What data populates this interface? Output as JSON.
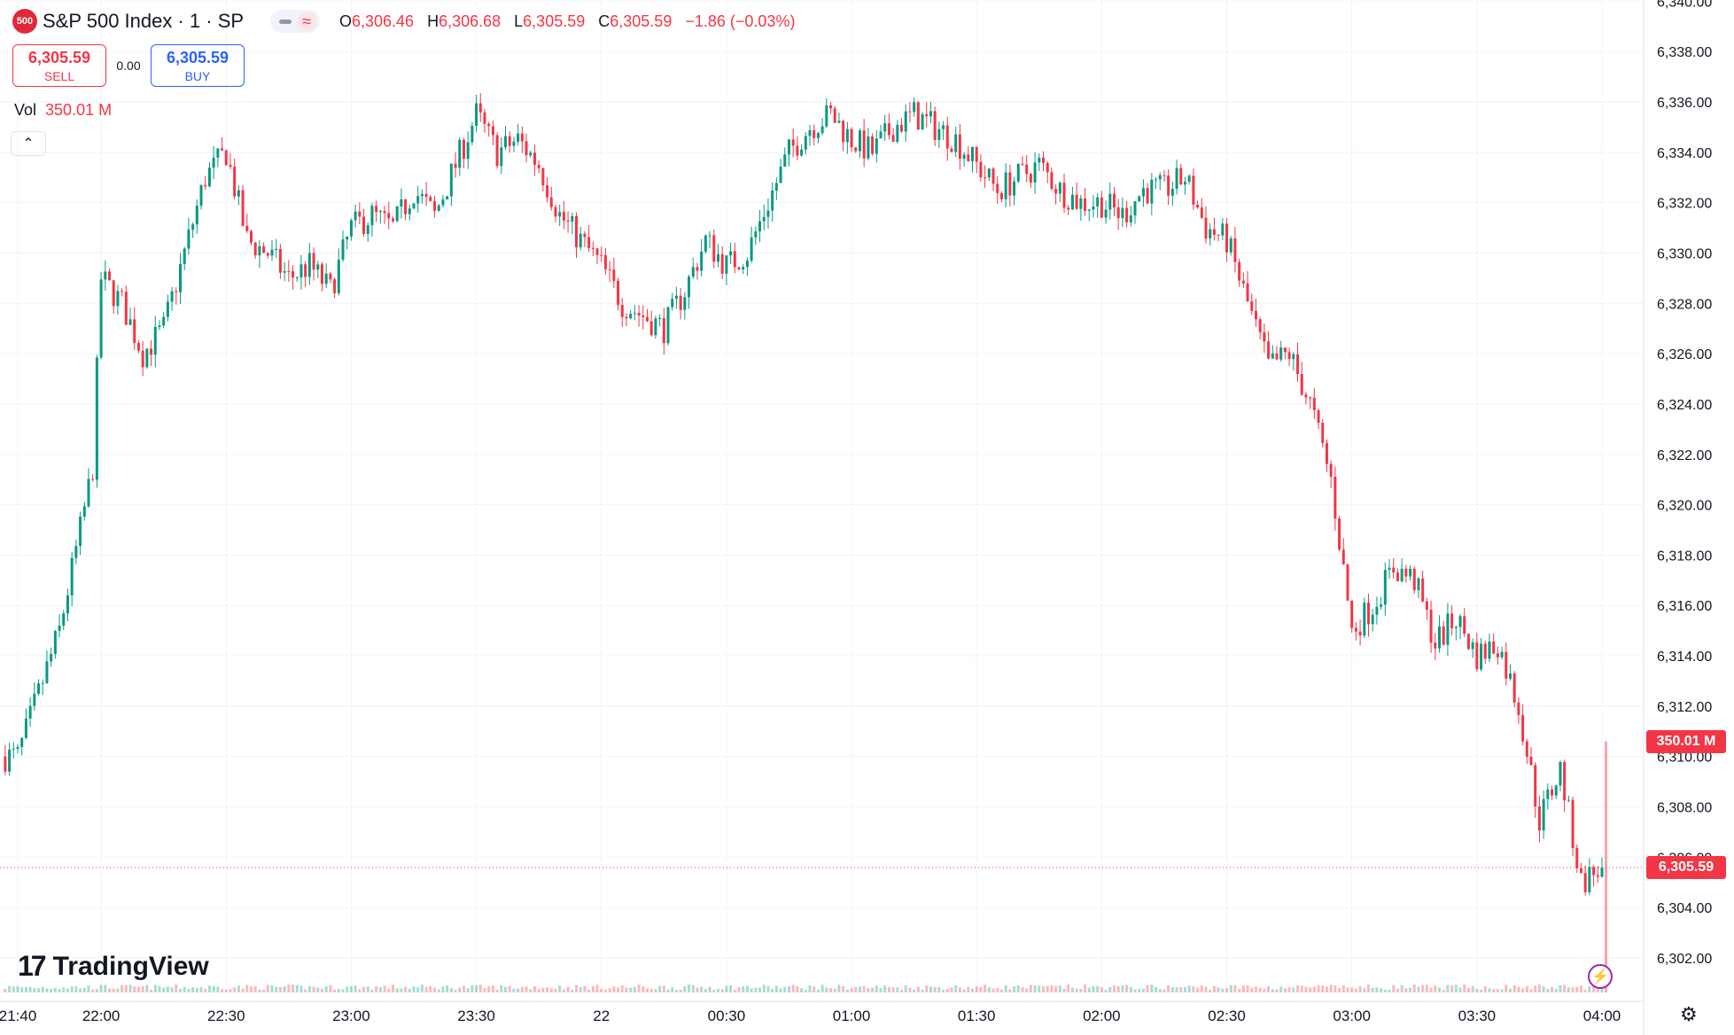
{
  "legend": {
    "symbol_badge": "500",
    "title": "S&P 500 Index · 1 · SP",
    "open_label": "O",
    "open": "6,306.46",
    "high_label": "H",
    "high": "6,306.68",
    "low_label": "L",
    "low": "6,305.59",
    "close_label": "C",
    "close": "6,305.59",
    "change": "−1.86 (−0.03%)"
  },
  "trade": {
    "sell_price": "6,305.59",
    "sell_label": "SELL",
    "spread": "0.00",
    "buy_price": "6,305.59",
    "buy_label": "BUY"
  },
  "volume_legend": {
    "label": "Vol",
    "value": "350.01 M"
  },
  "price_tag": "6,305.59",
  "volume_tag": "350.01 M",
  "logo_text": "TradingView",
  "icons": {
    "collapse": "chevron-up-icon",
    "bolt": "lightning-icon",
    "settings": "gear-icon"
  },
  "colors": {
    "up": "#089981",
    "down": "#f23645",
    "grid": "#f0f3fa"
  },
  "chart_data": {
    "type": "candlestick",
    "x_tick_labels": [
      "21:40",
      "22:00",
      "22:30",
      "23:00",
      "23:30",
      "22",
      "00:30",
      "01:00",
      "01:30",
      "02:00",
      "02:30",
      "03:00",
      "03:30",
      "04:00"
    ],
    "y_tick_labels": [
      "6,302.00",
      "6,304.00",
      "6,306.00",
      "6,308.00",
      "6,310.00",
      "6,312.00",
      "6,314.00",
      "6,316.00",
      "6,318.00",
      "6,320.00",
      "6,322.00",
      "6,324.00",
      "6,326.00",
      "6,328.00",
      "6,330.00",
      "6,332.00",
      "6,334.00",
      "6,336.00",
      "6,338.00",
      "6,340.00"
    ],
    "ylim": [
      6300.8,
      6340.0
    ],
    "x_start": "21:40",
    "x_end": "04:00",
    "last_price": 6305.59,
    "close_path": [
      [
        "21:40",
        6310.0
      ],
      [
        "21:50",
        6315.0
      ],
      [
        "21:55",
        6319.0
      ],
      [
        "21:58",
        6321.5
      ],
      [
        "22:00",
        6329.0
      ],
      [
        "22:05",
        6328.0
      ],
      [
        "22:10",
        6326.0
      ],
      [
        "22:15",
        6327.0
      ],
      [
        "22:20",
        6330.0
      ],
      [
        "22:25",
        6333.0
      ],
      [
        "22:30",
        6334.0
      ],
      [
        "22:35",
        6330.5
      ],
      [
        "22:40",
        6330.0
      ],
      [
        "22:45",
        6329.0
      ],
      [
        "22:50",
        6329.5
      ],
      [
        "22:55",
        6328.5
      ],
      [
        "23:00",
        6331.0
      ],
      [
        "23:05",
        6331.5
      ],
      [
        "23:10",
        6331.0
      ],
      [
        "23:15",
        6332.5
      ],
      [
        "23:20",
        6331.5
      ],
      [
        "23:25",
        6333.5
      ],
      [
        "23:30",
        6335.5
      ],
      [
        "23:35",
        6334.0
      ],
      [
        "23:40",
        6334.5
      ],
      [
        "23:45",
        6333.5
      ],
      [
        "23:50",
        6331.5
      ],
      [
        "23:55",
        6330.5
      ],
      [
        "00:00",
        6329.5
      ],
      [
        "00:05",
        6328.0
      ],
      [
        "00:10",
        6327.5
      ],
      [
        "00:15",
        6327.0
      ],
      [
        "00:20",
        6328.5
      ],
      [
        "00:25",
        6330.5
      ],
      [
        "00:30",
        6329.5
      ],
      [
        "00:35",
        6330.0
      ],
      [
        "00:40",
        6332.0
      ],
      [
        "00:45",
        6334.0
      ],
      [
        "00:50",
        6335.0
      ],
      [
        "00:55",
        6335.5
      ],
      [
        "01:00",
        6334.5
      ],
      [
        "01:05",
        6334.0
      ],
      [
        "01:10",
        6335.0
      ],
      [
        "01:15",
        6335.5
      ],
      [
        "01:20",
        6335.0
      ],
      [
        "01:25",
        6334.5
      ],
      [
        "01:30",
        6333.5
      ],
      [
        "01:35",
        6332.5
      ],
      [
        "01:40",
        6333.0
      ],
      [
        "01:45",
        6333.5
      ],
      [
        "01:50",
        6332.5
      ],
      [
        "01:55",
        6332.0
      ],
      [
        "02:00",
        6332.0
      ],
      [
        "02:05",
        6331.5
      ],
      [
        "02:10",
        6332.5
      ],
      [
        "02:15",
        6332.5
      ],
      [
        "02:20",
        6333.0
      ],
      [
        "02:25",
        6331.0
      ],
      [
        "02:30",
        6330.5
      ],
      [
        "02:35",
        6328.0
      ],
      [
        "02:40",
        6325.5
      ],
      [
        "02:45",
        6326.0
      ],
      [
        "02:50",
        6324.0
      ],
      [
        "02:55",
        6321.0
      ],
      [
        "03:00",
        6315.0
      ],
      [
        "03:05",
        6316.0
      ],
      [
        "03:10",
        6317.5
      ],
      [
        "03:15",
        6317.0
      ],
      [
        "03:20",
        6314.5
      ],
      [
        "03:25",
        6315.5
      ],
      [
        "03:30",
        6314.0
      ],
      [
        "03:35",
        6314.5
      ],
      [
        "03:40",
        6312.0
      ],
      [
        "03:45",
        6307.5
      ],
      [
        "03:50",
        6309.5
      ],
      [
        "03:55",
        6305.0
      ],
      [
        "04:00",
        6305.59
      ]
    ],
    "volume_spike": "350.01 M",
    "grid": true
  }
}
